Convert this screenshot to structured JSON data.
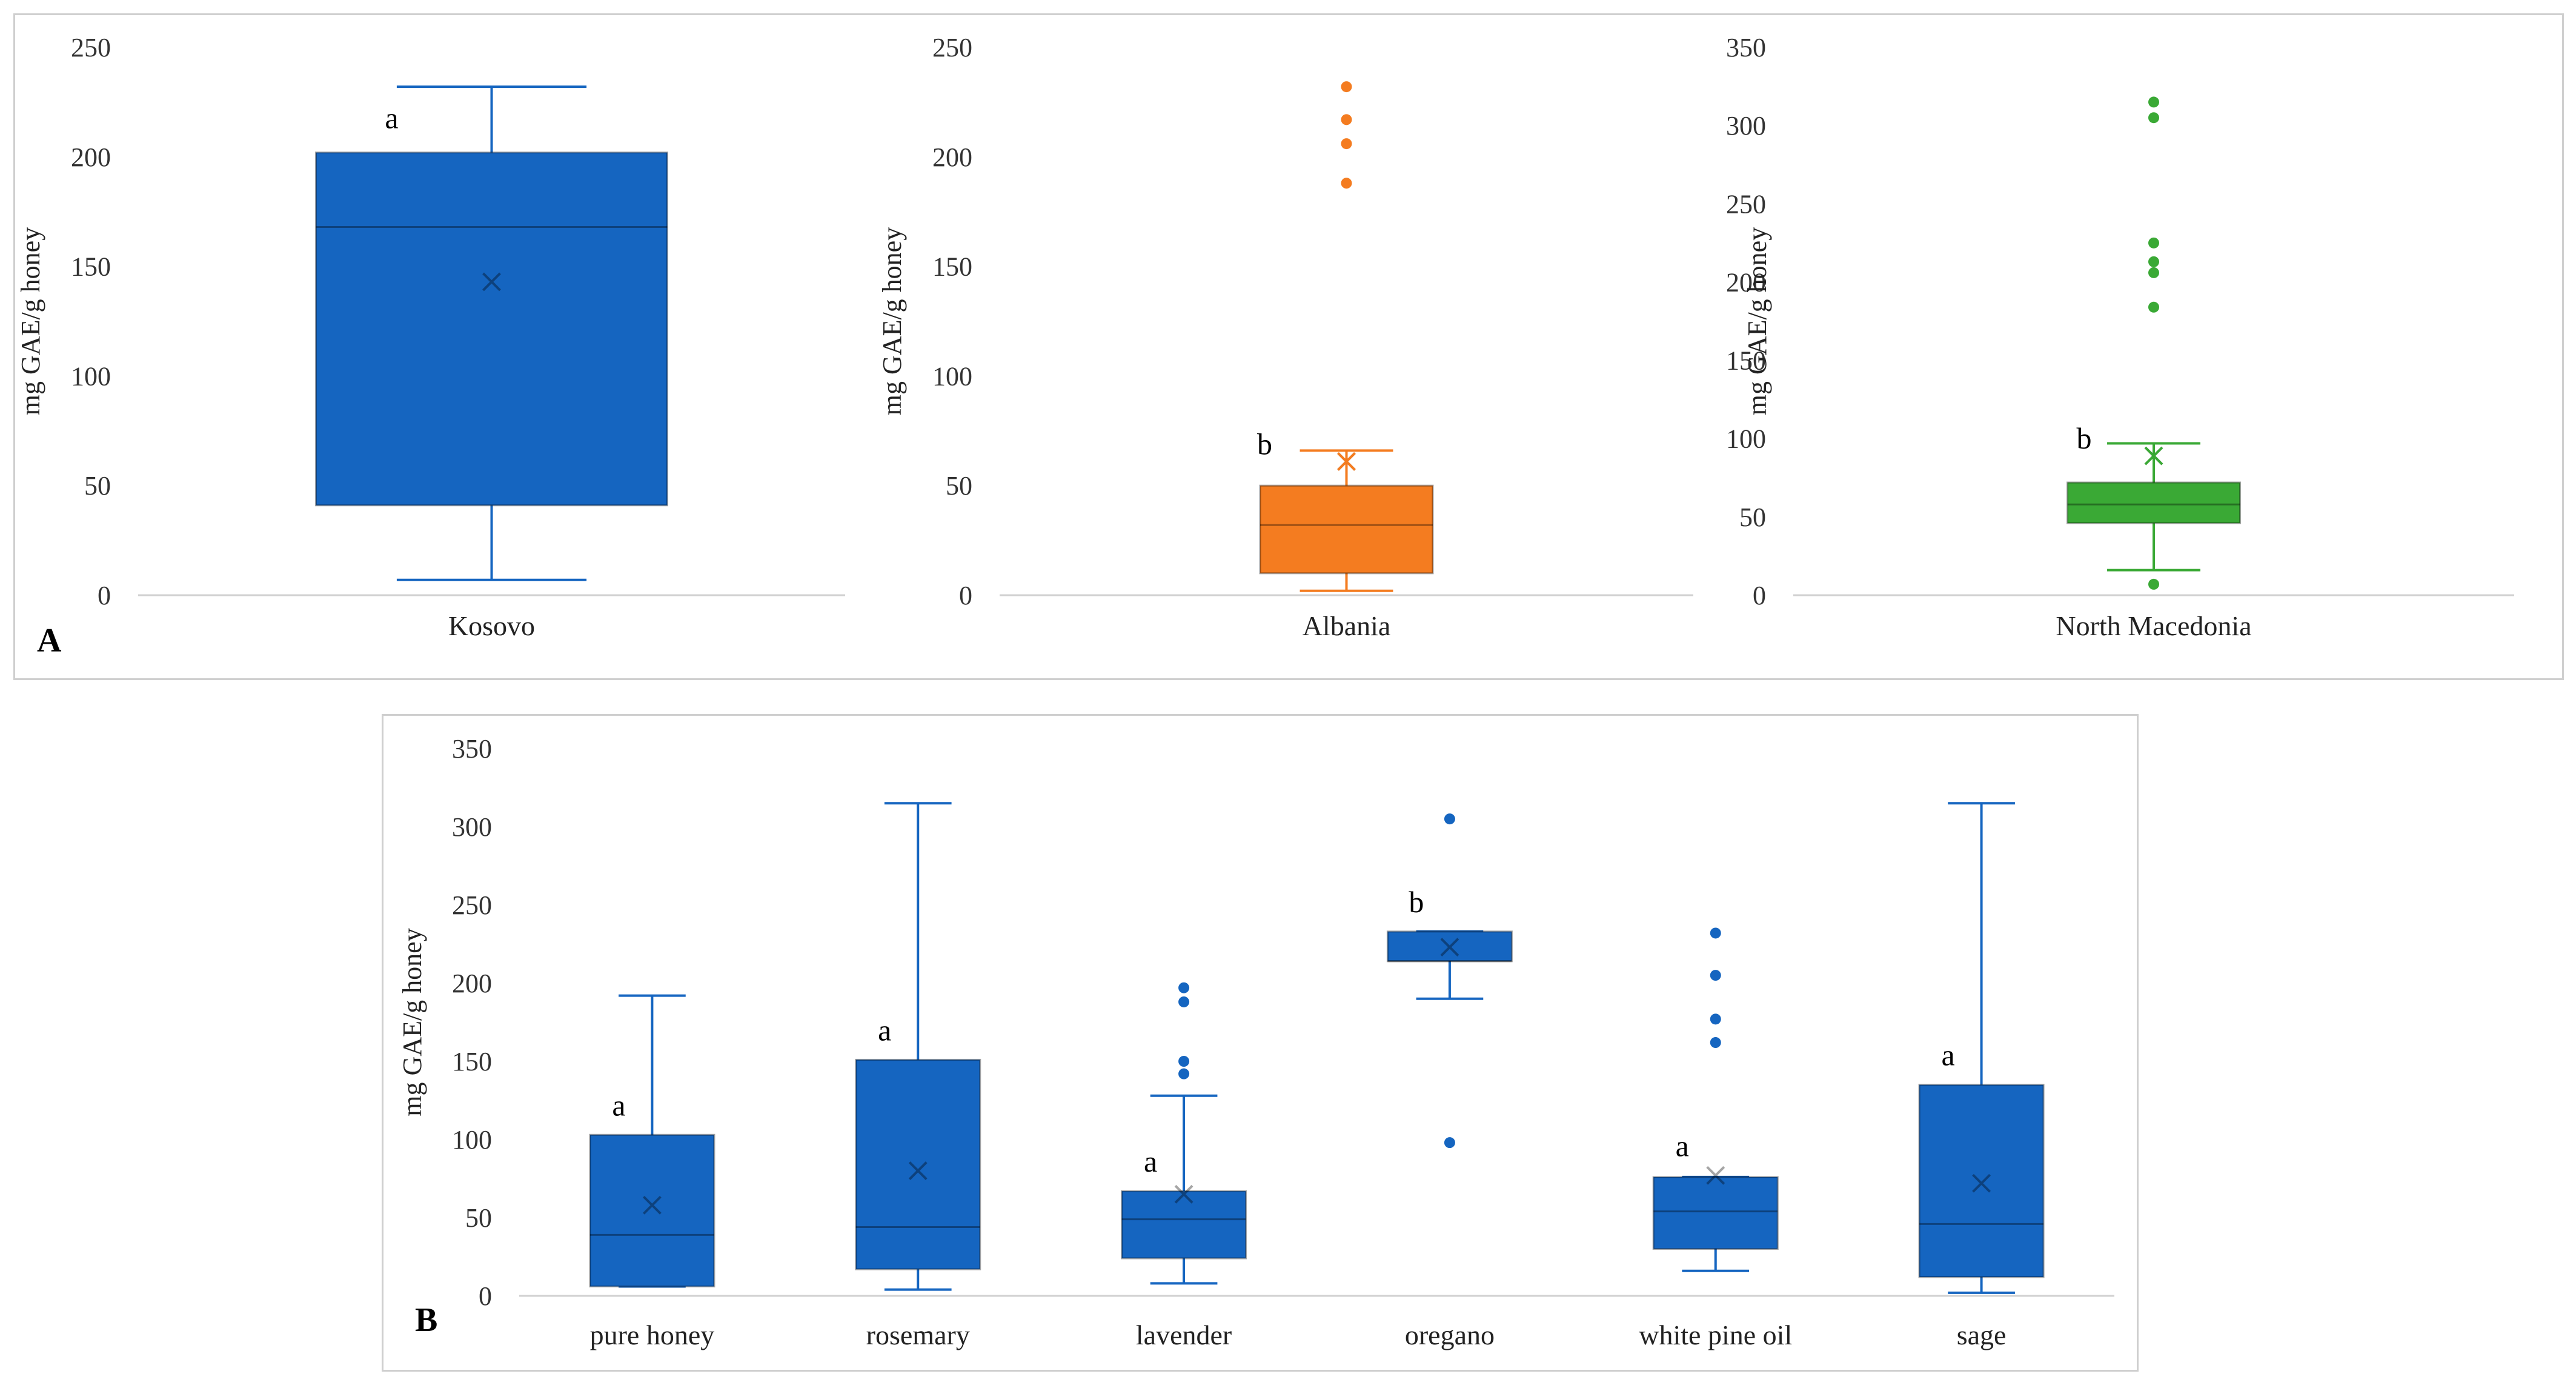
{
  "panels": {
    "a": {
      "letter": "A"
    },
    "b": {
      "letter": "B"
    }
  },
  "chart_data": [
    {
      "type": "box",
      "panel": "A",
      "ylabel": "mg GAE/g honey",
      "ylim": [
        0,
        250
      ],
      "ticks": [
        0,
        50,
        100,
        150,
        200,
        250
      ],
      "categories": [
        "Kosovo"
      ],
      "color": "#1565c0",
      "boxes": [
        {
          "category": "Kosovo",
          "min": 7,
          "q1": 41,
          "median": 168,
          "q3": 202,
          "max": 232,
          "mean": 143,
          "outliers": [],
          "sig": "a"
        }
      ]
    },
    {
      "type": "box",
      "panel": "A",
      "ylabel": "mg GAE/g honey",
      "ylim": [
        0,
        250
      ],
      "ticks": [
        0,
        50,
        100,
        150,
        200,
        250
      ],
      "categories": [
        "Albania"
      ],
      "color": "#f47c20",
      "boxes": [
        {
          "category": "Albania",
          "min": 2,
          "q1": 10,
          "median": 32,
          "q3": 50,
          "max": 66,
          "mean": 61,
          "outliers": [
            188,
            206,
            217,
            232
          ],
          "sig": "b"
        }
      ]
    },
    {
      "type": "box",
      "panel": "A",
      "ylabel": "mg GAE/g honey",
      "ylim": [
        0,
        350
      ],
      "ticks": [
        0,
        50,
        100,
        150,
        200,
        250,
        300,
        350
      ],
      "categories": [
        "North Macedonia"
      ],
      "color": "#3aa935",
      "boxes": [
        {
          "category": "North Macedonia",
          "min": 16,
          "q1": 46,
          "median": 58,
          "q3": 72,
          "max": 97,
          "mean": 89,
          "outliers": [
            7,
            184,
            206,
            213,
            225,
            305,
            315
          ],
          "sig": "b"
        }
      ]
    },
    {
      "type": "box",
      "panel": "B",
      "ylabel": "mg GAE/g honey",
      "ylim": [
        0,
        350
      ],
      "ticks": [
        0,
        50,
        100,
        150,
        200,
        250,
        300,
        350
      ],
      "categories": [
        "pure honey",
        "rosemary",
        "lavender",
        "oregano",
        "white pine oil",
        "sage"
      ],
      "color": "#1565c0",
      "boxes": [
        {
          "category": "pure honey",
          "min": 6,
          "q1": 6,
          "median": 39,
          "q3": 103,
          "max": 192,
          "mean": 58,
          "outliers": [],
          "sig": "a"
        },
        {
          "category": "rosemary",
          "min": 4,
          "q1": 17,
          "median": 44,
          "q3": 151,
          "max": 315,
          "mean": 80,
          "outliers": [],
          "sig": "a"
        },
        {
          "category": "lavender",
          "min": 8,
          "q1": 24,
          "median": 49,
          "q3": 67,
          "max": 128,
          "mean": 65,
          "outliers": [
            142,
            150,
            188,
            197
          ],
          "sig": "a"
        },
        {
          "category": "oregano",
          "min": 190,
          "q1": 214,
          "median": 214,
          "q3": 233,
          "max": 233,
          "mean": 223,
          "outliers": [
            98,
            305
          ],
          "sig": "b"
        },
        {
          "category": "white pine oil",
          "min": 16,
          "q1": 30,
          "median": 54,
          "q3": 76,
          "max": 76,
          "mean": 77,
          "outliers": [
            162,
            177,
            205,
            232
          ],
          "sig": "a"
        },
        {
          "category": "sage",
          "min": 2,
          "q1": 12,
          "median": 46,
          "q3": 135,
          "max": 315,
          "mean": 72,
          "outliers": [],
          "sig": "a"
        }
      ]
    }
  ]
}
